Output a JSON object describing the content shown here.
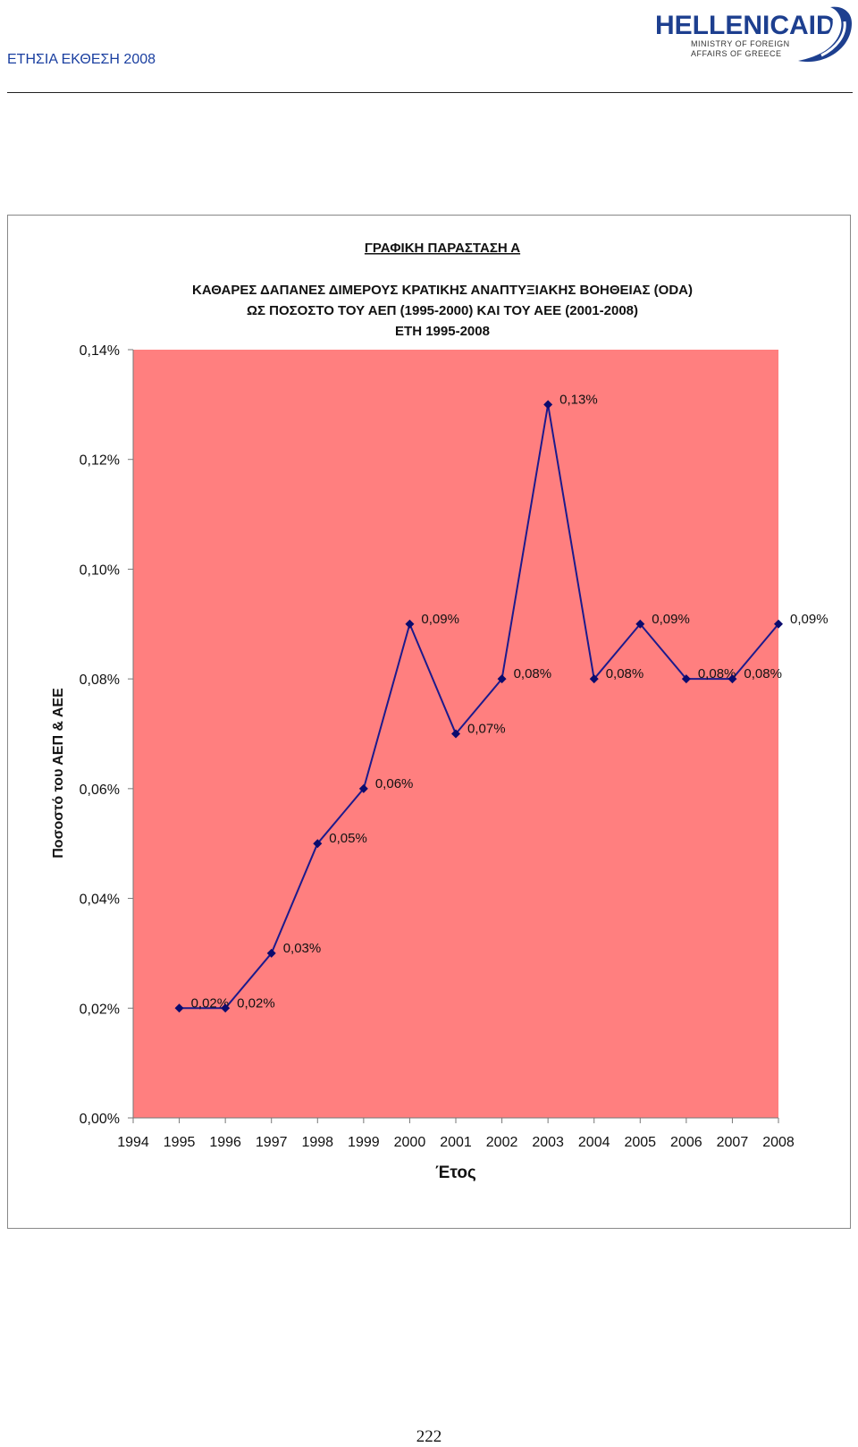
{
  "header": {
    "report_title": "ΕΤΗΣΙΑ ΕΚΘΕΣΗ 2008",
    "logo": {
      "brand_main": "HELLENIC",
      "brand_accent": "AID",
      "line1": "MINISTRY OF FOREIGN",
      "line2": "AFFAIRS OF GREECE"
    }
  },
  "page_number": "222",
  "colors": {
    "plot_background": "#ff7f7f",
    "line": "#1c1a8c",
    "marker": "#0b0b6e",
    "text": "#111111",
    "logo_blue": "#1d3f8f"
  },
  "chart_data": {
    "type": "line",
    "supertitle": "ΓΡΑΦΙΚΗ ΠΑΡΑΣΤΑΣΗ Α",
    "title_lines": [
      "ΚΑΘΑΡΕΣ ΔΑΠΑΝΕΣ ΔΙΜΕΡΟΥΣ ΚΡΑΤΙΚΗΣ ΑΝΑΠΤΥΞΙΑΚΗΣ ΒΟΗΘΕΙΑΣ (ODA)",
      "ΩΣ ΠΟΣΟΣΤΟ ΤΟΥ ΑΕΠ (1995-2000) ΚΑΙ ΤΟΥ ΑΕΕ (2001-2008)",
      "ΕΤΗ 1995-2008"
    ],
    "xlabel": "Έτος",
    "ylabel": "Ποσοστό του ΑΕΠ & ΑΕΕ",
    "xlim": [
      1994,
      2008
    ],
    "ylim": [
      0,
      0.14
    ],
    "x_ticks": [
      "1994",
      "1995",
      "1996",
      "1997",
      "1998",
      "1999",
      "2000",
      "2001",
      "2002",
      "2003",
      "2004",
      "2005",
      "2006",
      "2007",
      "2008"
    ],
    "y_ticks": [
      0,
      0.02,
      0.04,
      0.06,
      0.08,
      0.1,
      0.12,
      0.14
    ],
    "y_tick_labels": [
      "0,00%",
      "0,02%",
      "0,04%",
      "0,06%",
      "0,08%",
      "0,10%",
      "0,12%",
      "0,14%"
    ],
    "grid": false,
    "legend": "none",
    "series": [
      {
        "x": [
          1995,
          1996,
          1997,
          1998,
          1999,
          2000,
          2001,
          2002,
          2003,
          2004,
          2005,
          2006,
          2007,
          2008
        ],
        "y": [
          0.02,
          0.02,
          0.03,
          0.05,
          0.06,
          0.09,
          0.07,
          0.08,
          0.13,
          0.08,
          0.09,
          0.08,
          0.08,
          0.09
        ],
        "labels": [
          "0,02%",
          "0,02%",
          "0,03%",
          "0,05%",
          "0,06%",
          "0,09%",
          "0,07%",
          "0,08%",
          "0,13%",
          "0,08%",
          "0,09%",
          "0,08%",
          "0,08%",
          "0,09%"
        ]
      }
    ]
  }
}
